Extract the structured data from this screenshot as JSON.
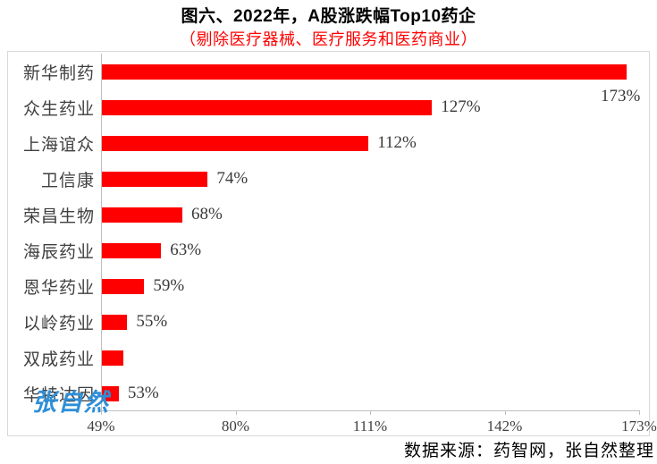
{
  "header": {
    "title": "图六、2022年，A股涨跌幅Top10药企",
    "subtitle": "（剔除医疗器械、医疗服务和医药商业）"
  },
  "chart_data": {
    "type": "bar",
    "orientation": "horizontal",
    "title": "图六、2022年，A股涨跌幅Top10药企",
    "subtitle": "（剔除医疗器械、医疗服务和医药商业）",
    "categories": [
      "新华制药",
      "众生药业",
      "上海谊众",
      "卫信康",
      "荣昌生物",
      "海辰药业",
      "恩华药业",
      "以岭药业",
      "双成药业",
      "华特达因"
    ],
    "values": [
      173,
      127,
      112,
      74,
      68,
      63,
      59,
      55,
      54,
      53
    ],
    "value_labels": [
      "173%",
      "127%",
      "112%",
      "74%",
      "68%",
      "63%",
      "59%",
      "55%",
      "",
      "53%"
    ],
    "xlabel": "",
    "ylabel": "",
    "x_axis": {
      "min": 49,
      "max": 173,
      "tick_labels": [
        "49%",
        "80%",
        "111%",
        "142%",
        "173%"
      ],
      "tick_values": [
        49,
        80,
        111,
        142,
        173
      ]
    },
    "grid": false,
    "legend": false,
    "bar_color": "#ff0000",
    "axis_color": "#bfbfbf",
    "label_color": "#404040"
  },
  "watermark": {
    "text": "张自然",
    "color": "#2e8fd8"
  },
  "footer": {
    "source": "数据来源：药智网，张自然整理"
  }
}
